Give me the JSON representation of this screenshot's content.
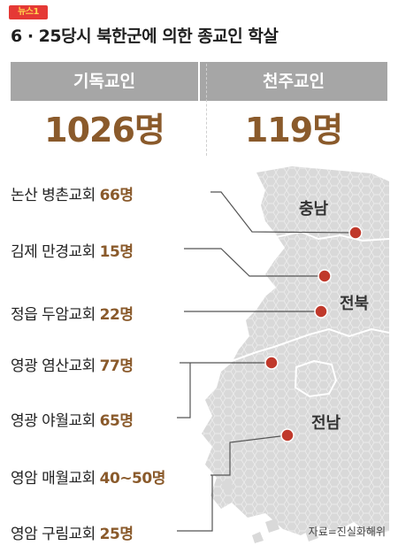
{
  "logo_text": "뉴스1",
  "title": "6 · 25당시 북한군에 의한 종교인 학살",
  "stats": [
    {
      "label": "기독교인",
      "value": "1026명"
    },
    {
      "label": "천주교인",
      "value": "119명"
    }
  ],
  "regions": [
    "충남",
    "전북",
    "전남"
  ],
  "churches": [
    {
      "name": "논산 병촌교회",
      "count": "66명"
    },
    {
      "name": "김제 만경교회",
      "count": "15명"
    },
    {
      "name": "정읍 두암교회",
      "count": "22명"
    },
    {
      "name": "영광 염산교회",
      "count": "77명"
    },
    {
      "name": "영광 야월교회",
      "count": "65명"
    },
    {
      "name": "영암 매월교회",
      "count": "40~50명"
    },
    {
      "name": "영암 구림교회",
      "count": "25명"
    }
  ],
  "source": "자료=진실화해위",
  "colors": {
    "stat_header": "#a6a6a6",
    "number": "#8a5a2b",
    "marker": "#c0392b",
    "map_fill": "#d9d9d9"
  }
}
